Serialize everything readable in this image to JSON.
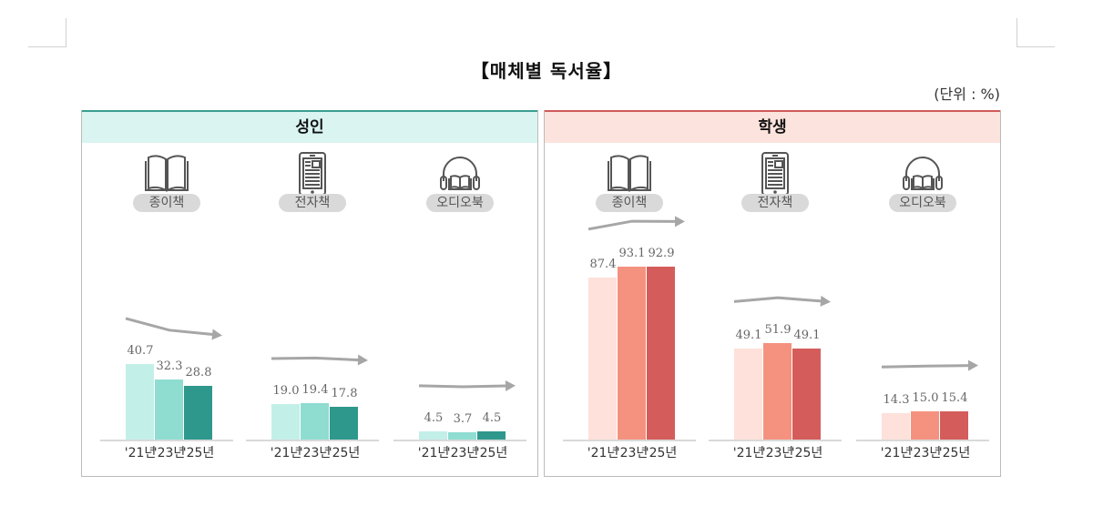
{
  "title": "【매체별 독서율】",
  "unit": "(단위 : %)",
  "panels": [
    {
      "label": "성인",
      "colors": [
        "#c3efe9",
        "#8fdcd1",
        "#2f988c"
      ],
      "groups": [
        {
          "label": "종이책",
          "icon": "book-icon",
          "values": [
            "40.7",
            "32.3",
            "28.8"
          ]
        },
        {
          "label": "전자책",
          "icon": "ebook-tablet-icon",
          "values": [
            "19.0",
            "19.4",
            "17.8"
          ]
        },
        {
          "label": "오디오북",
          "icon": "audiobook-headphones-icon",
          "values": [
            "4.5",
            "3.7",
            "4.5"
          ]
        }
      ]
    },
    {
      "label": "학생",
      "colors": [
        "#fde1da",
        "#f4927f",
        "#d45d5b"
      ],
      "groups": [
        {
          "label": "종이책",
          "icon": "book-icon",
          "values": [
            "87.4",
            "93.1",
            "92.9"
          ]
        },
        {
          "label": "전자책",
          "icon": "ebook-tablet-icon",
          "values": [
            "49.1",
            "51.9",
            "49.1"
          ]
        },
        {
          "label": "오디오북",
          "icon": "audiobook-headphones-icon",
          "values": [
            "14.3",
            "15.0",
            "15.4"
          ]
        }
      ]
    }
  ],
  "years": [
    "'21년",
    "'23년",
    "'25년"
  ],
  "chart_data": {
    "type": "bar",
    "title": "【매체별 독서율】",
    "unit": "%",
    "categories": [
      "'21년",
      "'23년",
      "'25년"
    ],
    "panels": [
      {
        "name": "성인",
        "series": [
          {
            "name": "종이책",
            "values": [
              40.7,
              32.3,
              28.8
            ]
          },
          {
            "name": "전자책",
            "values": [
              19.0,
              19.4,
              17.8
            ]
          },
          {
            "name": "오디오북",
            "values": [
              4.5,
              3.7,
              4.5
            ]
          }
        ]
      },
      {
        "name": "학생",
        "series": [
          {
            "name": "종이책",
            "values": [
              87.4,
              93.1,
              92.9
            ]
          },
          {
            "name": "전자책",
            "values": [
              49.1,
              51.9,
              49.1
            ]
          },
          {
            "name": "오디오북",
            "values": [
              14.3,
              15.0,
              15.4
            ]
          }
        ]
      }
    ],
    "ylim": [
      0,
      100
    ],
    "grid": false,
    "legend": "none"
  }
}
